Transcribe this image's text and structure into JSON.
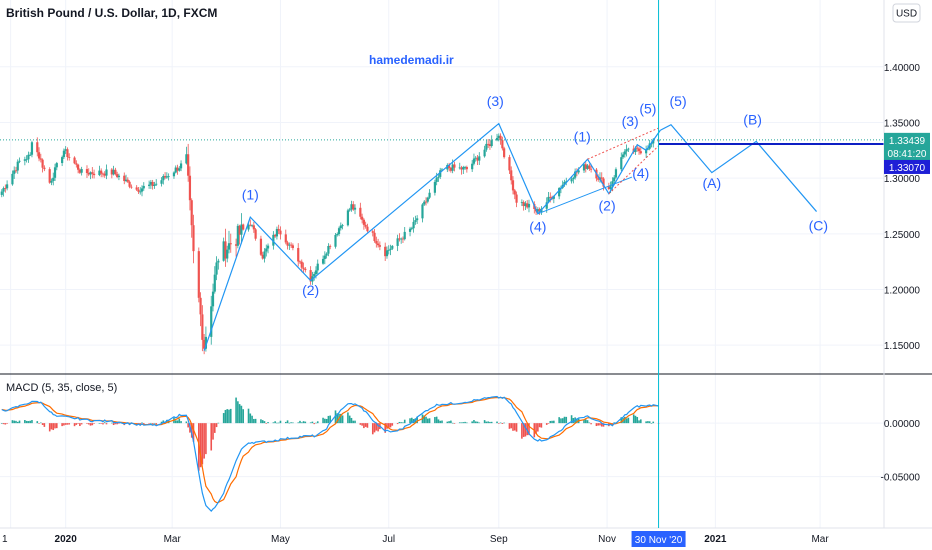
{
  "header": {
    "title": "British Pound / U.S. Dollar, 1D, FXCM",
    "currency_button": "USD",
    "watermark": "hamedemadi.ir"
  },
  "colors": {
    "up": "#26a69a",
    "down": "#ef5350",
    "wave_line": "#2196f3",
    "label": "#2962ff",
    "level_line": "#0d1fc4",
    "price_badge": "#26a69a",
    "level_badge": "#1e1fd6",
    "macd_line": "#2196f3",
    "signal_line": "#ff6d00",
    "cursor": "#00bcd4",
    "grid": "#f0f3fa"
  },
  "chart_data": [
    {
      "type": "candlestick",
      "title": "British Pound / U.S. Dollar, 1D, FXCM",
      "ylim": [
        1.125,
        1.46
      ],
      "y_ticks": [
        "1.40000",
        "1.35000",
        "1.30000",
        "1.25000",
        "1.20000",
        "1.15000"
      ],
      "x_ticks": [
        "1",
        "2020",
        "Mar",
        "May",
        "Jul",
        "Sep",
        "Nov",
        "30 Nov '20",
        "2021",
        "Mar"
      ],
      "last_price": "1.33439",
      "countdown": "08:41:20",
      "level_price": "1.33070",
      "wave_path": [
        {
          "x": "2020-03-19",
          "y": 1.145
        },
        {
          "x": "2020-04-14",
          "y": 1.265
        },
        {
          "x": "2020-05-18",
          "y": 1.208
        },
        {
          "x": "2020-09-01",
          "y": 1.349
        },
        {
          "x": "2020-09-23",
          "y": 1.268
        },
        {
          "x": "2020-10-21",
          "y": 1.317
        },
        {
          "x": "2020-11-02",
          "y": 1.286
        },
        {
          "x": "2020-11-18",
          "y": 1.33
        },
        {
          "x": "2020-11-23",
          "y": 1.325
        },
        {
          "x": "2020-12-01",
          "y": 1.343
        }
      ],
      "projection_path": [
        {
          "x": "2020-12-01",
          "y": 1.343
        },
        {
          "x": "2020-12-07",
          "y": 1.348
        },
        {
          "x": "2020-12-30",
          "y": 1.305
        },
        {
          "x": "2021-01-24",
          "y": 1.333
        },
        {
          "x": "2021-02-27",
          "y": 1.27
        }
      ],
      "channels": [
        {
          "kind": "solid",
          "from": {
            "x": "2020-09-23",
            "y": 1.268
          },
          "to": {
            "x": "2020-11-15",
            "y": 1.301
          }
        },
        {
          "kind": "dotted",
          "from": {
            "x": "2020-10-21",
            "y": 1.317
          },
          "to": {
            "x": "2020-11-30",
            "y": 1.345
          }
        },
        {
          "kind": "dotted",
          "from": {
            "x": "2020-11-02",
            "y": 1.286
          },
          "to": {
            "x": "2020-11-30",
            "y": 1.329
          }
        }
      ],
      "wave_labels": [
        {
          "text": "(1)",
          "x": "2020-04-14",
          "y": 1.281
        },
        {
          "text": "(2)",
          "x": "2020-05-18",
          "y": 1.195
        },
        {
          "text": "(3)",
          "x": "2020-08-30",
          "y": 1.365
        },
        {
          "text": "(4)",
          "x": "2020-09-23",
          "y": 1.252
        },
        {
          "text": "(1)",
          "x": "2020-10-18",
          "y": 1.333
        },
        {
          "text": "(2)",
          "x": "2020-11-01",
          "y": 1.271
        },
        {
          "text": "(3)",
          "x": "2020-11-14",
          "y": 1.347
        },
        {
          "text": "(4)",
          "x": "2020-11-20",
          "y": 1.3
        },
        {
          "text": "(5)",
          "x": "2020-11-24",
          "y": 1.358
        },
        {
          "text": "(5)",
          "x": "2020-12-11",
          "y": 1.365
        },
        {
          "text": "(A)",
          "x": "2020-12-30",
          "y": 1.291
        },
        {
          "text": "(B)",
          "x": "2021-01-22",
          "y": 1.348
        },
        {
          "text": "(C)",
          "x": "2021-02-28",
          "y": 1.253
        }
      ],
      "price_anchors": [
        {
          "x": "2019-11-26",
          "y": 1.288
        },
        {
          "x": "2019-12-06",
          "y": 1.315
        },
        {
          "x": "2019-12-12",
          "y": 1.32
        },
        {
          "x": "2019-12-13",
          "y": 1.335
        },
        {
          "x": "2019-12-23",
          "y": 1.296
        },
        {
          "x": "2019-12-31",
          "y": 1.325
        },
        {
          "x": "2020-01-10",
          "y": 1.305
        },
        {
          "x": "2020-01-28",
          "y": 1.305
        },
        {
          "x": "2020-02-10",
          "y": 1.29
        },
        {
          "x": "2020-02-21",
          "y": 1.295
        },
        {
          "x": "2020-03-09",
          "y": 1.315
        },
        {
          "x": "2020-03-13",
          "y": 1.23
        },
        {
          "x": "2020-03-19",
          "y": 1.15
        },
        {
          "x": "2020-03-27",
          "y": 1.23
        },
        {
          "x": "2020-04-14",
          "y": 1.26
        },
        {
          "x": "2020-04-21",
          "y": 1.23
        },
        {
          "x": "2020-04-30",
          "y": 1.255
        },
        {
          "x": "2020-05-18",
          "y": 1.21
        },
        {
          "x": "2020-06-10",
          "y": 1.275
        },
        {
          "x": "2020-06-29",
          "y": 1.233
        },
        {
          "x": "2020-07-14",
          "y": 1.255
        },
        {
          "x": "2020-08-01",
          "y": 1.31
        },
        {
          "x": "2020-08-14",
          "y": 1.308
        },
        {
          "x": "2020-09-01",
          "y": 1.34
        },
        {
          "x": "2020-09-11",
          "y": 1.28
        },
        {
          "x": "2020-09-23",
          "y": 1.27
        },
        {
          "x": "2020-10-10",
          "y": 1.3
        },
        {
          "x": "2020-10-21",
          "y": 1.312
        },
        {
          "x": "2020-11-02",
          "y": 1.29
        },
        {
          "x": "2020-11-10",
          "y": 1.323
        },
        {
          "x": "2020-11-20",
          "y": 1.325
        },
        {
          "x": "2020-11-30",
          "y": 1.3344
        }
      ]
    },
    {
      "type": "line",
      "title": "MACD (5, 35, close, 5)",
      "ylim": [
        -0.098,
        0.045
      ],
      "y_ticks": [
        "0.00000",
        "-0.05000"
      ],
      "series": [
        {
          "name": "MACD",
          "color": "#2196f3"
        },
        {
          "name": "Signal",
          "color": "#ff6d00"
        }
      ],
      "macd_anchors": [
        {
          "x": "2019-11-26",
          "y": 0.012
        },
        {
          "x": "2019-12-16",
          "y": 0.02
        },
        {
          "x": "2019-12-28",
          "y": 0.006
        },
        {
          "x": "2020-01-20",
          "y": 0.002
        },
        {
          "x": "2020-02-20",
          "y": -0.002
        },
        {
          "x": "2020-03-08",
          "y": 0.008
        },
        {
          "x": "2020-03-22",
          "y": -0.082
        },
        {
          "x": "2020-04-14",
          "y": -0.018
        },
        {
          "x": "2020-05-20",
          "y": -0.012
        },
        {
          "x": "2020-06-10",
          "y": 0.018
        },
        {
          "x": "2020-07-02",
          "y": -0.008
        },
        {
          "x": "2020-08-01",
          "y": 0.018
        },
        {
          "x": "2020-09-02",
          "y": 0.024
        },
        {
          "x": "2020-09-24",
          "y": -0.016
        },
        {
          "x": "2020-10-20",
          "y": 0.006
        },
        {
          "x": "2020-11-02",
          "y": -0.002
        },
        {
          "x": "2020-11-20",
          "y": 0.016
        },
        {
          "x": "2020-11-30",
          "y": 0.017
        }
      ]
    }
  ]
}
